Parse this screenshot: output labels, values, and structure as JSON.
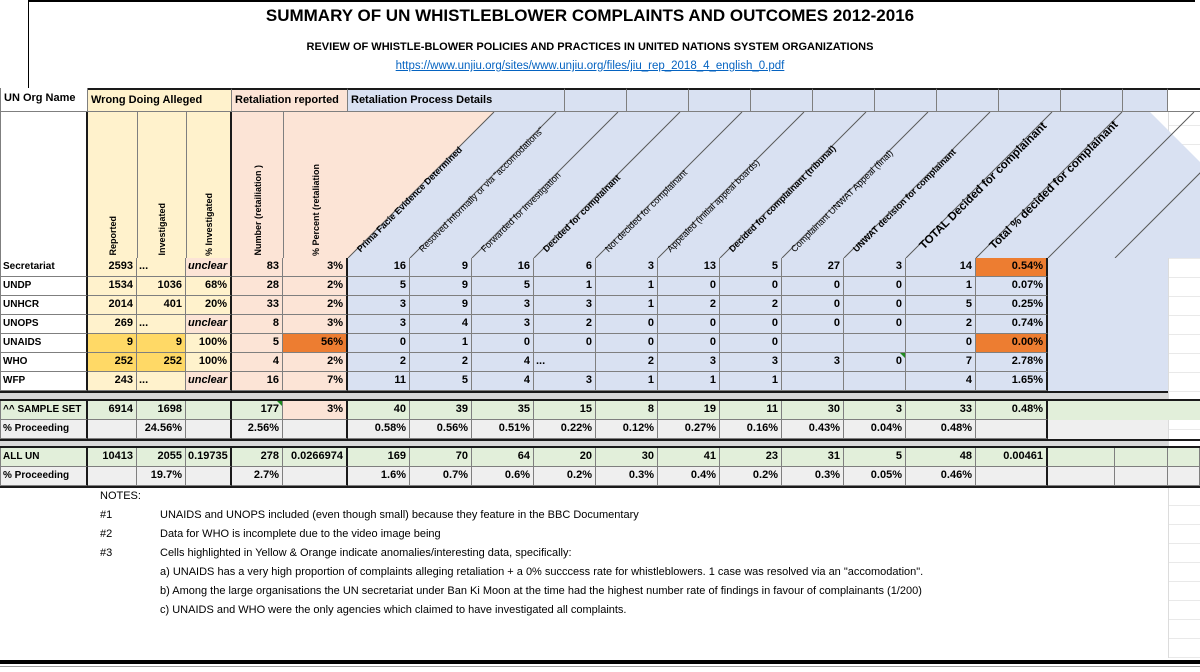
{
  "title": "SUMMARY OF UN WHISTLEBLOWER COMPLAINTS AND OUTCOMES 2012-2016",
  "subtitle": "REVIEW OF WHISTLE-BLOWER POLICIES AND PRACTICES IN UNITED NATIONS SYSTEM ORGANIZATIONS",
  "url": "https://www.unjiu.org/sites/www.unjiu.org/files/jiu_rep_2018_4_english_0.pdf",
  "group_headers": {
    "org": "UN Org Name",
    "wrongdoing": "Wrong Doing Alleged",
    "retaliation": "Retaliation reported",
    "process": "Retaliation Process Details"
  },
  "column_headers": {
    "vertical": [
      "Reported",
      "Investigated",
      "% Investigated",
      "Number (retailiation )",
      "% Percent (retaliation"
    ],
    "diagonal": [
      {
        "label": "Prima Facie Evidence Determined",
        "bold": true,
        "large": false
      },
      {
        "label": "Resolved informally or via \"accomodations\"",
        "bold": false,
        "large": false
      },
      {
        "label": "Forwarded for investigation",
        "bold": false,
        "large": false
      },
      {
        "label": "Decided for complainant",
        "bold": true,
        "large": false
      },
      {
        "label": "Not decided for complainant",
        "bold": false,
        "large": false
      },
      {
        "label": "Appealed (initial appeal boards)",
        "bold": false,
        "large": false
      },
      {
        "label": "Decided for complainant (tribunal)",
        "bold": true,
        "large": false
      },
      {
        "label": "Complainant UNWAT Appeal (final)",
        "bold": false,
        "large": false
      },
      {
        "label": "UNWAT decision for complainant",
        "bold": true,
        "large": false
      },
      {
        "label": "TOTAL Decided for complainant",
        "bold": true,
        "large": true
      },
      {
        "label": "Total % decided for complainant",
        "bold": true,
        "large": true
      }
    ]
  },
  "table": {
    "org_rows": [
      {
        "cells": [
          "Secretariat",
          "2593",
          "...",
          "unclear",
          "83",
          "3%",
          "16",
          "9",
          "16",
          "6",
          "3",
          "13",
          "5",
          "27",
          "3",
          "14",
          "0.54%"
        ],
        "styles": {
          "2": "dots",
          "3": "unclear",
          "16": "orange"
        }
      },
      {
        "cells": [
          "UNDP",
          "1534",
          "1036",
          "68%",
          "28",
          "2%",
          "5",
          "9",
          "5",
          "1",
          "1",
          "0",
          "0",
          "0",
          "0",
          "1",
          "0.07%"
        ],
        "styles": {}
      },
      {
        "cells": [
          "UNHCR",
          "2014",
          "401",
          "20%",
          "33",
          "2%",
          "3",
          "9",
          "3",
          "3",
          "1",
          "2",
          "2",
          "0",
          "0",
          "5",
          "0.25%"
        ],
        "styles": {}
      },
      {
        "cells": [
          "UNOPS",
          "269",
          "...",
          "unclear",
          "8",
          "3%",
          "3",
          "4",
          "3",
          "2",
          "0",
          "0",
          "0",
          "0",
          "0",
          "2",
          "0.74%"
        ],
        "styles": {
          "2": "dots",
          "3": "unclear"
        }
      },
      {
        "cells": [
          "UNAIDS",
          "9",
          "9",
          "100%",
          "5",
          "56%",
          "0",
          "1",
          "0",
          "0",
          "0",
          "0",
          "0",
          "",
          "",
          "0",
          "0.00%"
        ],
        "styles": {
          "1": "hl",
          "2": "hl",
          "5": "orange",
          "16": "orange"
        }
      },
      {
        "cells": [
          "WHO",
          "252",
          "252",
          "100%",
          "4",
          "2%",
          "2",
          "2",
          "4",
          "...",
          "2",
          "3",
          "3",
          "3",
          "0",
          "7",
          "2.78%"
        ],
        "styles": {
          "1": "hl",
          "2": "hl",
          "9": "dots",
          "14": "tri"
        }
      },
      {
        "cells": [
          "WFP",
          "243",
          "...",
          "unclear",
          "16",
          "7%",
          "11",
          "5",
          "4",
          "3",
          "1",
          "1",
          "1",
          "",
          "",
          "4",
          "1.65%"
        ],
        "styles": {
          "2": "dots",
          "3": "unclear"
        }
      }
    ],
    "sample_rows": [
      {
        "cells": [
          "^^ SAMPLE SET",
          "6914",
          "1698",
          "",
          "177",
          "3%",
          "40",
          "39",
          "35",
          "15",
          "8",
          "19",
          "11",
          "30",
          "3",
          "33",
          "0.48%"
        ],
        "styles": {
          "4": "tri",
          "5": "peach"
        }
      },
      {
        "cells": [
          "% Proceeding",
          "",
          "24.56%",
          "",
          "2.56%",
          "",
          "0.58%",
          "0.56%",
          "0.51%",
          "0.22%",
          "0.12%",
          "0.27%",
          "0.16%",
          "0.43%",
          "0.04%",
          "0.48%",
          ""
        ],
        "styles": {}
      }
    ],
    "allun_rows": [
      {
        "cells": [
          "ALL UN",
          "10413",
          "2055",
          "0.19735",
          "278",
          "0.0266974",
          "169",
          "70",
          "64",
          "20",
          "30",
          "41",
          "23",
          "31",
          "5",
          "48",
          "0.00461"
        ],
        "styles": {}
      },
      {
        "cells": [
          "% Proceeding",
          "",
          "19.7%",
          "",
          "2.7%",
          "",
          "1.6%",
          "0.7%",
          "0.6%",
          "0.2%",
          "0.3%",
          "0.4%",
          "0.2%",
          "0.3%",
          "0.05%",
          "0.46%",
          ""
        ],
        "styles": {}
      }
    ]
  },
  "notes": {
    "heading": "NOTES:",
    "items": [
      {
        "num": "#1",
        "text": "UNAIDS and UNOPS included (even though small) because they feature in the BBC Documentary"
      },
      {
        "num": "#2",
        "text": "Data for WHO is incomplete due to the video image being"
      },
      {
        "num": "#3",
        "text": "Cells highlighted in Yellow & Orange indicate anomalies/interesting data, specifically:"
      }
    ],
    "subitems": [
      "a) UNAIDS has a very high proportion of complaints alleging retaliation + a 0% succcess rate for whistleblowers. 1 case was resolved via an \"accomodation\".",
      "b) Among the large organisations the UN secretariat under Ban Ki Moon at the time had the highest number rate of findings in favour of complainants (1/200)",
      "c) UNAIDS and WHO were the only agencies which claimed to have investigated all complaints."
    ]
  },
  "colors": {
    "yellow": "#FFF2CC",
    "yellow_highlight": "#FFD966",
    "peach": "#FCE4D6",
    "orange": "#ED7D31",
    "lavender": "#D9E1F2",
    "green": "#E2EFDA",
    "grey_band": "#D9D9D9",
    "link_blue": "#0563C1"
  }
}
